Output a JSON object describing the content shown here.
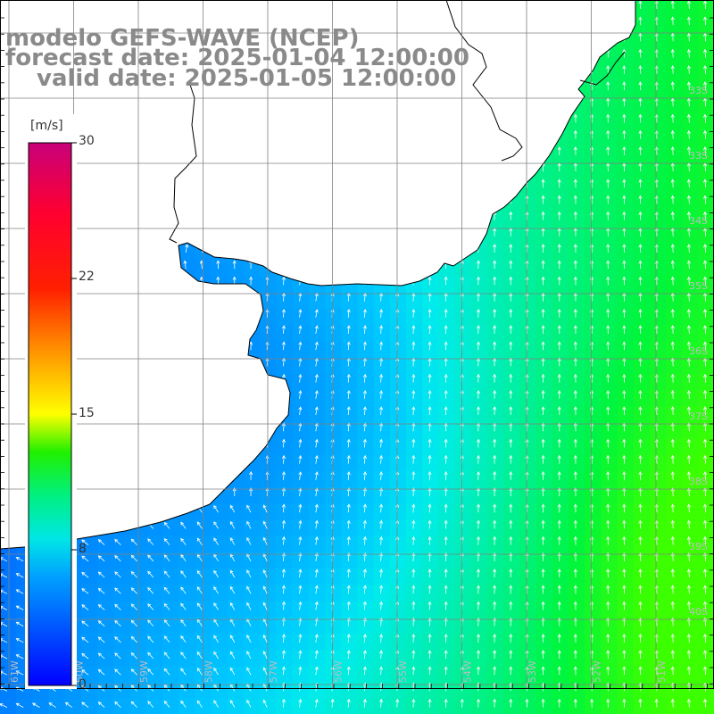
{
  "header": {
    "title": "modelo GEFS-WAVE (NCEP)",
    "forecast": "forecast date: 2025-01-04 12:00:00",
    "valid": "valid date: 2025-01-05 12:00:00"
  },
  "colorbar": {
    "unit": "[m/s]",
    "ticks": [
      "30",
      "22",
      "15",
      "8",
      "0"
    ],
    "tick_values": [
      30,
      22,
      15,
      8,
      0
    ],
    "colors": [
      "#0000ff",
      "#0080ff",
      "#00e6e6",
      "#00ff40",
      "#80ff00",
      "#ffff00",
      "#ff8000",
      "#ff0000",
      "#e60050",
      "#c8007a"
    ]
  },
  "lat_labels": [
    "33S",
    "33S",
    "34S",
    "35S",
    "36S",
    "37S",
    "38S",
    "39S",
    "40S"
  ],
  "lon_labels": [
    "61W",
    "60W",
    "59W",
    "58W",
    "57W",
    "56W",
    "55W",
    "54W",
    "53W",
    "52W",
    "51W"
  ],
  "colors": {
    "land": "#ffffff",
    "coast": "#000000",
    "grid": "#808080",
    "arrow": "#ffffff",
    "header_text": "#8a8a8a"
  }
}
